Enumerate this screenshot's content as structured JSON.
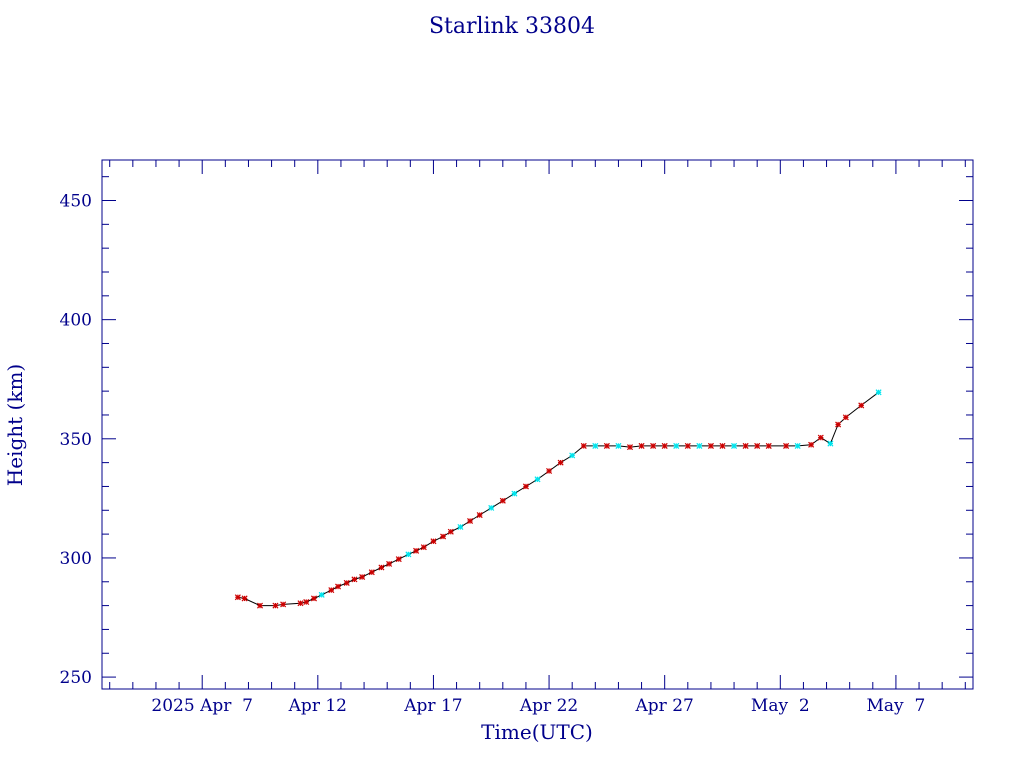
{
  "chart_data": {
    "type": "line",
    "title": "Starlink 33804",
    "xlabel": "Time(UTC)",
    "ylabel": "Height (km)",
    "x_ticks": [
      {
        "date": "2025-04-07",
        "label": "2025 Apr  7"
      },
      {
        "date": "2025-04-12",
        "label": "Apr 12"
      },
      {
        "date": "2025-04-17",
        "label": "Apr 17"
      },
      {
        "date": "2025-04-22",
        "label": "Apr 22"
      },
      {
        "date": "2025-04-27",
        "label": "Apr 27"
      },
      {
        "date": "2025-05-02",
        "label": "May  2"
      },
      {
        "date": "2025-05-07",
        "label": "May  7"
      }
    ],
    "y_ticks": [
      250,
      300,
      350,
      400,
      450
    ],
    "xlim": [
      "2025-04-02T16:00",
      "2025-05-10T08:00"
    ],
    "ylim": [
      245,
      467
    ],
    "colors": {
      "axis": "#00008b",
      "line": "#000000",
      "marker_a": "#cc0000",
      "marker_b": "#00e5ee"
    },
    "series": [
      {
        "values": [
          {
            "t": "2025-04-08T13:00",
            "h": 283.5,
            "m": "a"
          },
          {
            "t": "2025-04-08T20:00",
            "h": 283.0,
            "m": "a"
          },
          {
            "t": "2025-04-09T12:00",
            "h": 280.0,
            "m": "a"
          },
          {
            "t": "2025-04-10T04:00",
            "h": 280.0,
            "m": "a"
          },
          {
            "t": "2025-04-10T12:00",
            "h": 280.5,
            "m": "a"
          },
          {
            "t": "2025-04-11T06:00",
            "h": 281.0,
            "m": "a"
          },
          {
            "t": "2025-04-11T12:00",
            "h": 281.5,
            "m": "a"
          },
          {
            "t": "2025-04-11T20:00",
            "h": 283.0,
            "m": "a"
          },
          {
            "t": "2025-04-12T04:00",
            "h": 284.5,
            "m": "b"
          },
          {
            "t": "2025-04-12T14:00",
            "h": 286.5,
            "m": "a"
          },
          {
            "t": "2025-04-12T21:00",
            "h": 288.0,
            "m": "a"
          },
          {
            "t": "2025-04-13T06:00",
            "h": 289.5,
            "m": "a"
          },
          {
            "t": "2025-04-13T14:00",
            "h": 291.0,
            "m": "a"
          },
          {
            "t": "2025-04-13T22:00",
            "h": 292.0,
            "m": "a"
          },
          {
            "t": "2025-04-14T08:00",
            "h": 294.0,
            "m": "a"
          },
          {
            "t": "2025-04-14T18:00",
            "h": 296.0,
            "m": "a"
          },
          {
            "t": "2025-04-15T02:00",
            "h": 297.5,
            "m": "a"
          },
          {
            "t": "2025-04-15T12:00",
            "h": 299.5,
            "m": "a"
          },
          {
            "t": "2025-04-15T22:00",
            "h": 301.5,
            "m": "b"
          },
          {
            "t": "2025-04-16T06:00",
            "h": 303.0,
            "m": "a"
          },
          {
            "t": "2025-04-16T14:00",
            "h": 304.5,
            "m": "a"
          },
          {
            "t": "2025-04-17T00:00",
            "h": 307.0,
            "m": "a"
          },
          {
            "t": "2025-04-17T10:00",
            "h": 309.0,
            "m": "a"
          },
          {
            "t": "2025-04-17T18:00",
            "h": 311.0,
            "m": "a"
          },
          {
            "t": "2025-04-18T04:00",
            "h": 313.0,
            "m": "b"
          },
          {
            "t": "2025-04-18T14:00",
            "h": 315.5,
            "m": "a"
          },
          {
            "t": "2025-04-19T00:00",
            "h": 318.0,
            "m": "a"
          },
          {
            "t": "2025-04-19T12:00",
            "h": 321.0,
            "m": "b"
          },
          {
            "t": "2025-04-20T00:00",
            "h": 324.0,
            "m": "a"
          },
          {
            "t": "2025-04-20T12:00",
            "h": 327.0,
            "m": "b"
          },
          {
            "t": "2025-04-21T00:00",
            "h": 330.0,
            "m": "a"
          },
          {
            "t": "2025-04-21T12:00",
            "h": 333.0,
            "m": "b"
          },
          {
            "t": "2025-04-22T00:00",
            "h": 336.5,
            "m": "a"
          },
          {
            "t": "2025-04-22T12:00",
            "h": 340.0,
            "m": "a"
          },
          {
            "t": "2025-04-23T00:00",
            "h": 343.0,
            "m": "b"
          },
          {
            "t": "2025-04-23T12:00",
            "h": 347.0,
            "m": "a"
          },
          {
            "t": "2025-04-24T00:00",
            "h": 347.0,
            "m": "b"
          },
          {
            "t": "2025-04-24T12:00",
            "h": 347.0,
            "m": "a"
          },
          {
            "t": "2025-04-25T00:00",
            "h": 347.0,
            "m": "b"
          },
          {
            "t": "2025-04-25T12:00",
            "h": 346.5,
            "m": "a"
          },
          {
            "t": "2025-04-26T00:00",
            "h": 347.0,
            "m": "a"
          },
          {
            "t": "2025-04-26T12:00",
            "h": 347.0,
            "m": "a"
          },
          {
            "t": "2025-04-27T00:00",
            "h": 347.0,
            "m": "a"
          },
          {
            "t": "2025-04-27T12:00",
            "h": 347.0,
            "m": "b"
          },
          {
            "t": "2025-04-28T00:00",
            "h": 347.0,
            "m": "a"
          },
          {
            "t": "2025-04-28T12:00",
            "h": 347.0,
            "m": "b"
          },
          {
            "t": "2025-04-29T00:00",
            "h": 347.0,
            "m": "a"
          },
          {
            "t": "2025-04-29T12:00",
            "h": 347.0,
            "m": "a"
          },
          {
            "t": "2025-04-30T00:00",
            "h": 347.0,
            "m": "b"
          },
          {
            "t": "2025-04-30T12:00",
            "h": 347.0,
            "m": "a"
          },
          {
            "t": "2025-05-01T00:00",
            "h": 347.0,
            "m": "a"
          },
          {
            "t": "2025-05-01T12:00",
            "h": 347.0,
            "m": "a"
          },
          {
            "t": "2025-05-02T06:00",
            "h": 347.0,
            "m": "a"
          },
          {
            "t": "2025-05-02T18:00",
            "h": 347.0,
            "m": "b"
          },
          {
            "t": "2025-05-03T08:00",
            "h": 347.5,
            "m": "a"
          },
          {
            "t": "2025-05-03T18:00",
            "h": 350.5,
            "m": "a"
          },
          {
            "t": "2025-05-04T04:00",
            "h": 348.0,
            "m": "b"
          },
          {
            "t": "2025-05-04T12:00",
            "h": 356.0,
            "m": "a"
          },
          {
            "t": "2025-05-04T20:00",
            "h": 359.0,
            "m": "a"
          },
          {
            "t": "2025-05-05T12:00",
            "h": 364.0,
            "m": "a"
          },
          {
            "t": "2025-05-06T06:00",
            "h": 369.5,
            "m": "b"
          }
        ]
      }
    ]
  }
}
